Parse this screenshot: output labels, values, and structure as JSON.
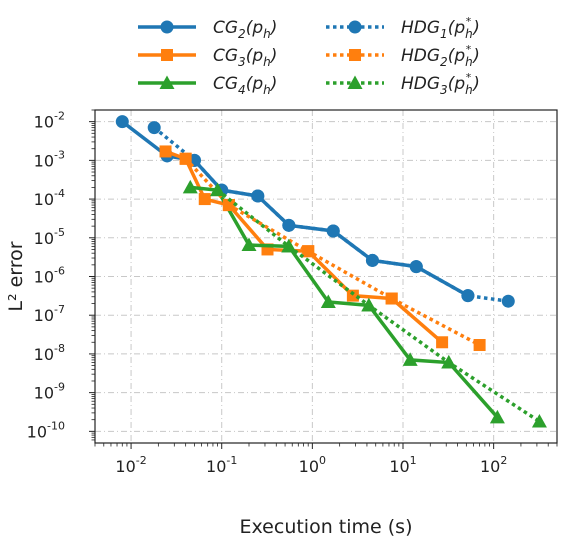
{
  "chart_data": {
    "type": "line",
    "xscale": "log",
    "yscale": "log",
    "xlim": [
      0.004,
      500
    ],
    "ylim": [
      5e-11,
      0.02
    ],
    "grid": true,
    "legend_placement": "top-center",
    "xlabel": "Execution time (s)",
    "ylabel": "L² error",
    "x_ticks": [
      {
        "value": 0.01,
        "base": "10",
        "exp": "-2"
      },
      {
        "value": 0.1,
        "base": "10",
        "exp": "-1"
      },
      {
        "value": 1,
        "base": "10",
        "exp": "0"
      },
      {
        "value": 10,
        "base": "10",
        "exp": "1"
      },
      {
        "value": 100,
        "base": "10",
        "exp": "2"
      }
    ],
    "y_ticks": [
      {
        "value": 0.01,
        "base": "10",
        "exp": "-2"
      },
      {
        "value": 0.001,
        "base": "10",
        "exp": "-3"
      },
      {
        "value": 0.0001,
        "base": "10",
        "exp": "-4"
      },
      {
        "value": 1e-05,
        "base": "10",
        "exp": "-5"
      },
      {
        "value": 1e-06,
        "base": "10",
        "exp": "-6"
      },
      {
        "value": 1e-07,
        "base": "10",
        "exp": "-7"
      },
      {
        "value": 1e-08,
        "base": "10",
        "exp": "-8"
      },
      {
        "value": 1e-09,
        "base": "10",
        "exp": "-9"
      },
      {
        "value": 1e-10,
        "base": "10",
        "exp": "-10"
      }
    ],
    "series": [
      {
        "name": "CG2(ph)",
        "label_base": "CG",
        "label_sub": "2",
        "label_arg": "(p",
        "label_arg_sub": "h",
        "label_star": false,
        "label_close": ")",
        "color": "#1f77b4",
        "style": "solid",
        "marker": "circle",
        "points": [
          [
            0.008,
            0.01
          ],
          [
            0.025,
            0.0013
          ],
          [
            0.05,
            0.001
          ],
          [
            0.1,
            0.00017
          ],
          [
            0.25,
            0.00012
          ],
          [
            0.55,
            2.1e-05
          ],
          [
            1.7,
            1.5e-05
          ],
          [
            4.6,
            2.6e-06
          ],
          [
            14,
            1.8e-06
          ],
          [
            52,
            3.2e-07
          ]
        ]
      },
      {
        "name": "CG3(ph)",
        "label_base": "CG",
        "label_sub": "3",
        "label_arg": "(p",
        "label_arg_sub": "h",
        "label_star": false,
        "label_close": ")",
        "color": "#ff7f0e",
        "style": "solid",
        "marker": "square",
        "points": [
          [
            0.024,
            0.0017
          ],
          [
            0.04,
            0.0011
          ],
          [
            0.065,
            0.0001
          ],
          [
            0.12,
            7e-05
          ],
          [
            0.32,
            5e-06
          ],
          [
            0.9,
            4.5e-06
          ],
          [
            2.8,
            3.2e-07
          ],
          [
            7.5,
            2.7e-07
          ],
          [
            27,
            2e-08
          ]
        ]
      },
      {
        "name": "CG4(ph)",
        "label_base": "CG",
        "label_sub": "4",
        "label_arg": "(p",
        "label_arg_sub": "h",
        "label_star": false,
        "label_close": ")",
        "color": "#2ca02c",
        "style": "solid",
        "marker": "triangle",
        "points": [
          [
            0.045,
            0.0002
          ],
          [
            0.09,
            0.00017
          ],
          [
            0.2,
            6.5e-06
          ],
          [
            0.55,
            6e-06
          ],
          [
            1.5,
            2.2e-07
          ],
          [
            4.2,
            1.8e-07
          ],
          [
            12,
            7e-09
          ],
          [
            32,
            6e-09
          ],
          [
            110,
            2.3e-10
          ]
        ]
      },
      {
        "name": "HDG1(ph*)",
        "label_base": "HDG",
        "label_sub": "1",
        "label_arg": "(p",
        "label_arg_sub": "h",
        "label_star": true,
        "label_close": ")",
        "color": "#1f77b4",
        "style": "dotted",
        "marker": "circle",
        "points": [
          [
            0.018,
            0.007
          ],
          [
            0.05,
            0.001
          ],
          [
            0.1,
            0.00017
          ],
          [
            0.25,
            0.00012
          ],
          [
            0.55,
            2.1e-05
          ],
          [
            1.7,
            1.5e-05
          ],
          [
            4.6,
            2.6e-06
          ],
          [
            14,
            1.8e-06
          ],
          [
            52,
            3.2e-07
          ],
          [
            145,
            2.3e-07
          ]
        ]
      },
      {
        "name": "HDG2(ph*)",
        "label_base": "HDG",
        "label_sub": "2",
        "label_arg": "(p",
        "label_arg_sub": "h",
        "label_star": true,
        "label_close": ")",
        "color": "#ff7f0e",
        "style": "dotted",
        "marker": "square",
        "points": [
          [
            0.04,
            0.0011
          ],
          [
            0.12,
            7e-05
          ],
          [
            0.9,
            4.5e-06
          ],
          [
            7.5,
            2.7e-07
          ],
          [
            70,
            1.7e-08
          ]
        ]
      },
      {
        "name": "HDG3(ph*)",
        "label_base": "HDG",
        "label_sub": "3",
        "label_arg": "(p",
        "label_arg_sub": "h",
        "label_star": true,
        "label_close": ")",
        "color": "#2ca02c",
        "style": "dotted",
        "marker": "triangle",
        "points": [
          [
            0.09,
            0.00017
          ],
          [
            0.55,
            6e-06
          ],
          [
            4.2,
            1.8e-07
          ],
          [
            32,
            6e-09
          ],
          [
            320,
            1.8e-10
          ]
        ]
      }
    ]
  }
}
